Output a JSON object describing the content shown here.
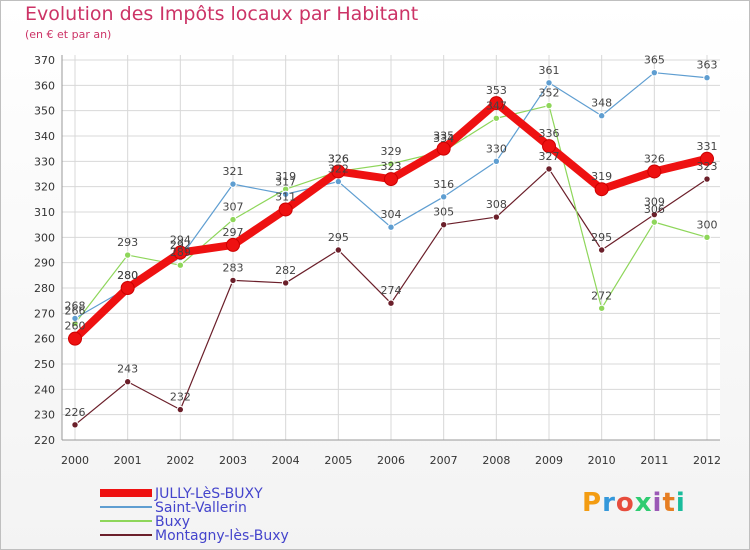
{
  "title": "Evolution des Impôts locaux par Habitant",
  "subtitle": "(en € et par an)",
  "logo": {
    "text": "Proxiti",
    "colors": [
      "#f39c12",
      "#3498db",
      "#e74c3c",
      "#2ecc71",
      "#9b59b6",
      "#e67e22",
      "#1abc9c"
    ]
  },
  "chart_data": {
    "type": "line",
    "title": "Evolution des Impôts locaux par Habitant",
    "subtitle": "(en € et par an)",
    "xlabel": "",
    "ylabel": "",
    "ylim": [
      220,
      370
    ],
    "yticks": [
      220,
      230,
      240,
      250,
      260,
      270,
      280,
      290,
      300,
      310,
      320,
      330,
      340,
      350,
      360,
      370
    ],
    "grid": true,
    "legend_position": "bottom-left",
    "x": [
      "2000",
      "2001",
      "2002",
      "2003",
      "2004",
      "2005",
      "2006",
      "2007",
      "2008",
      "2009",
      "2010",
      "2011",
      "2012"
    ],
    "series": [
      {
        "name": "Montagny-lès-Buxy",
        "color": "#6b1f2a",
        "width": 1.2,
        "values": [
          226,
          243,
          232,
          283,
          282,
          295,
          274,
          305,
          308,
          327,
          295,
          309,
          323
        ]
      },
      {
        "name": "Buxy",
        "color": "#8ed65a",
        "width": 1.2,
        "values": [
          266,
          293,
          289,
          307,
          319,
          326,
          329,
          334,
          347,
          352,
          272,
          306,
          300
        ]
      },
      {
        "name": "Saint-Vallerin",
        "color": "#5f9ed1",
        "width": 1.2,
        "values": [
          268,
          280,
          292,
          321,
          317,
          322,
          304,
          316,
          330,
          361,
          348,
          365,
          363
        ]
      },
      {
        "name": "JULLY-LèS-BUXY",
        "color": "#ee1111",
        "width": 8,
        "values": [
          260,
          280,
          294,
          297,
          311,
          326,
          323,
          335,
          353,
          336,
          319,
          326,
          331
        ]
      }
    ]
  }
}
